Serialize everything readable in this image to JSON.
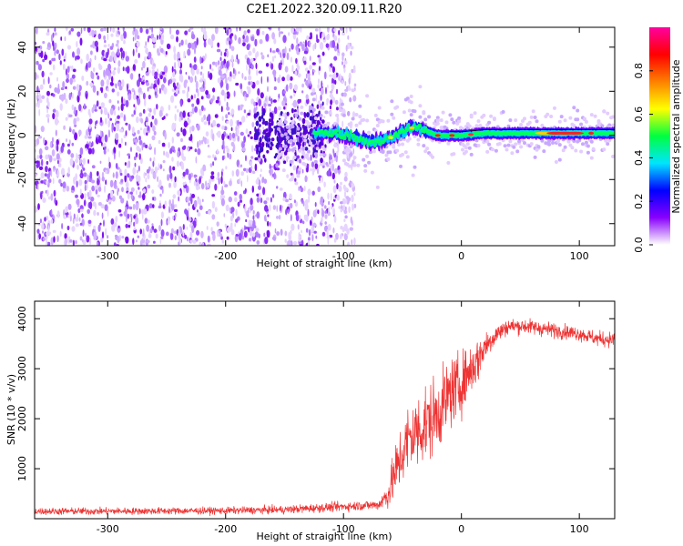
{
  "title": "C2E1.2022.320.09.11.R20",
  "chart_data": [
    {
      "type": "heatmap",
      "xlabel": "Height of straight line (km)",
      "ylabel": "Frequency (Hz)",
      "xlim": [
        -362,
        130
      ],
      "ylim": [
        -50,
        49
      ],
      "xticks": [
        -300,
        -200,
        -100,
        0,
        100
      ],
      "yticks": [
        -40,
        -20,
        0,
        20,
        40
      ],
      "noise_region_x": [
        -362,
        -90
      ],
      "signal_track": {
        "x": [
          -125,
          -110,
          -95,
          -85,
          -75,
          -65,
          -55,
          -45,
          -38,
          -30,
          -20,
          -10,
          0,
          20,
          40,
          60,
          80,
          100,
          115,
          130
        ],
        "freq": [
          1,
          1,
          0,
          -2,
          -3,
          -2,
          0,
          3,
          4,
          2,
          0,
          0,
          0,
          1,
          1,
          1,
          1,
          1,
          1,
          1
        ]
      },
      "colorbar": {
        "label": "Normalized spectral amplitude",
        "range": [
          0.0,
          1.0
        ],
        "ticks": [
          "0.0",
          "0.2",
          "0.4",
          "0.6",
          "0.8"
        ],
        "colors": [
          "#ffffff",
          "#8800ff",
          "#0000ff",
          "#00e5ff",
          "#00ff40",
          "#ffff00",
          "#ff8000",
          "#ff0000",
          "#ff00a0"
        ]
      }
    },
    {
      "type": "line",
      "xlabel": "Height of straight line (km)",
      "ylabel": "SNR (10 * v/v)",
      "xlim": [
        -362,
        130
      ],
      "ylim": [
        0,
        4350
      ],
      "xticks": [
        -300,
        -200,
        -100,
        0,
        100
      ],
      "yticks": [
        1000,
        2000,
        3000,
        4000
      ],
      "color": "#ee3333",
      "envelope": {
        "x": [
          -362,
          -300,
          -200,
          -150,
          -110,
          -70,
          -62,
          -55,
          -45,
          -30,
          -20,
          -10,
          0,
          5,
          12,
          20,
          30,
          40,
          55,
          75,
          100,
          115,
          130
        ],
        "mean": [
          150,
          150,
          160,
          180,
          230,
          280,
          500,
          1000,
          1600,
          1900,
          2100,
          2500,
          2700,
          2900,
          3100,
          3450,
          3700,
          3850,
          3850,
          3780,
          3700,
          3600,
          3580
        ],
        "spread": [
          70,
          70,
          70,
          80,
          90,
          100,
          300,
          600,
          700,
          800,
          700,
          700,
          600,
          500,
          500,
          300,
          200,
          150,
          150,
          150,
          140,
          150,
          150
        ]
      }
    }
  ]
}
